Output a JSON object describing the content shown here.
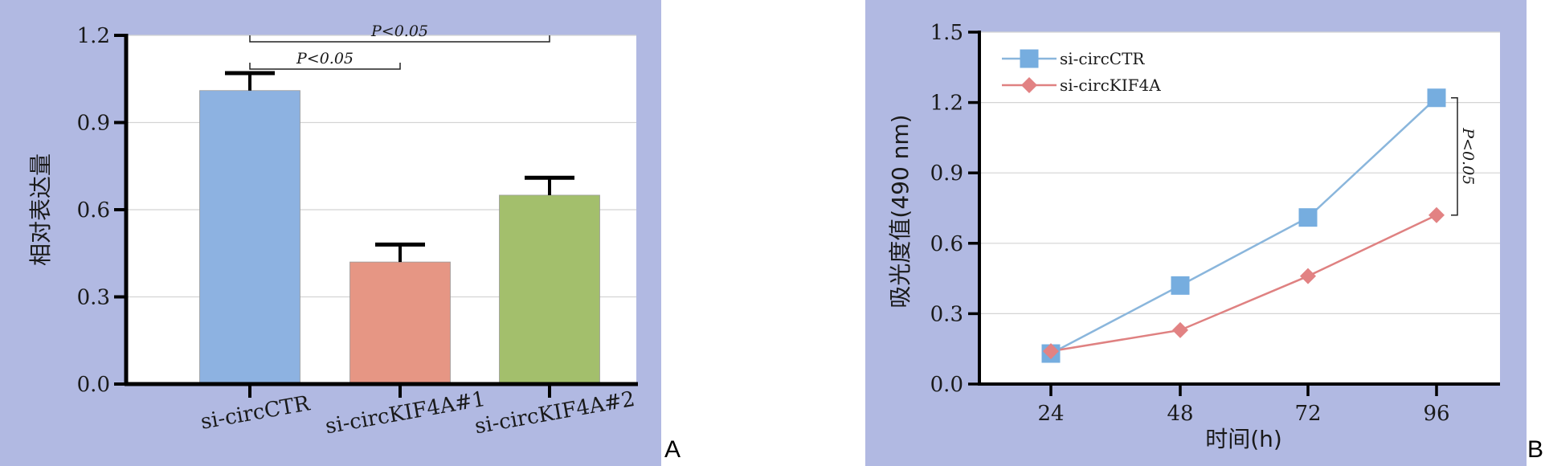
{
  "panels": {
    "a_letter": "A",
    "b_letter": "B"
  },
  "colors": {
    "panel_bg": "#b1b9e2",
    "plot_bg": "#ffffff",
    "bar_ctr": "#8db2e1",
    "bar_kif1": "#e69684",
    "bar_kif2": "#a3bf6c",
    "line_ctr": "#8ab6dc",
    "marker_ctr": "#76addf",
    "line_kif": "#df8181",
    "marker_kif": "#e28283"
  },
  "chart_data": [
    {
      "type": "bar",
      "title": "",
      "xlabel": "",
      "ylabel": "相对表达量",
      "ylim": [
        0,
        1.2
      ],
      "yticks": [
        "0.0",
        "0.3",
        "0.6",
        "0.9",
        "1.2"
      ],
      "grid": true,
      "categories": [
        "si-circCTR",
        "si-circKIF4A#1",
        "si-circKIF4A#2"
      ],
      "values": [
        1.01,
        0.42,
        0.65
      ],
      "errors": [
        0.06,
        0.06,
        0.06
      ],
      "annotations": [
        {
          "text": "P<0.05",
          "from": 0,
          "to": 1
        },
        {
          "text": "P<0.05",
          "from": 0,
          "to": 2
        }
      ]
    },
    {
      "type": "line",
      "title": "",
      "xlabel": "时间(h)",
      "ylabel": "吸光度值(490 nm)",
      "x": [
        24,
        48,
        72,
        96
      ],
      "xticks": [
        "24",
        "48",
        "72",
        "96"
      ],
      "ylim": [
        0,
        1.5
      ],
      "yticks": [
        "0.0",
        "0.3",
        "0.6",
        "0.9",
        "1.2",
        "1.5"
      ],
      "grid": true,
      "legend_position": "top-left",
      "series": [
        {
          "name": "si-circCTR",
          "values": [
            0.13,
            0.42,
            0.71,
            1.22
          ],
          "marker": "square"
        },
        {
          "name": "si-circKIF4A",
          "values": [
            0.14,
            0.23,
            0.46,
            0.72
          ],
          "marker": "diamond"
        }
      ],
      "annotations": [
        {
          "text": "P<0.05",
          "at_x": 96
        }
      ]
    }
  ]
}
